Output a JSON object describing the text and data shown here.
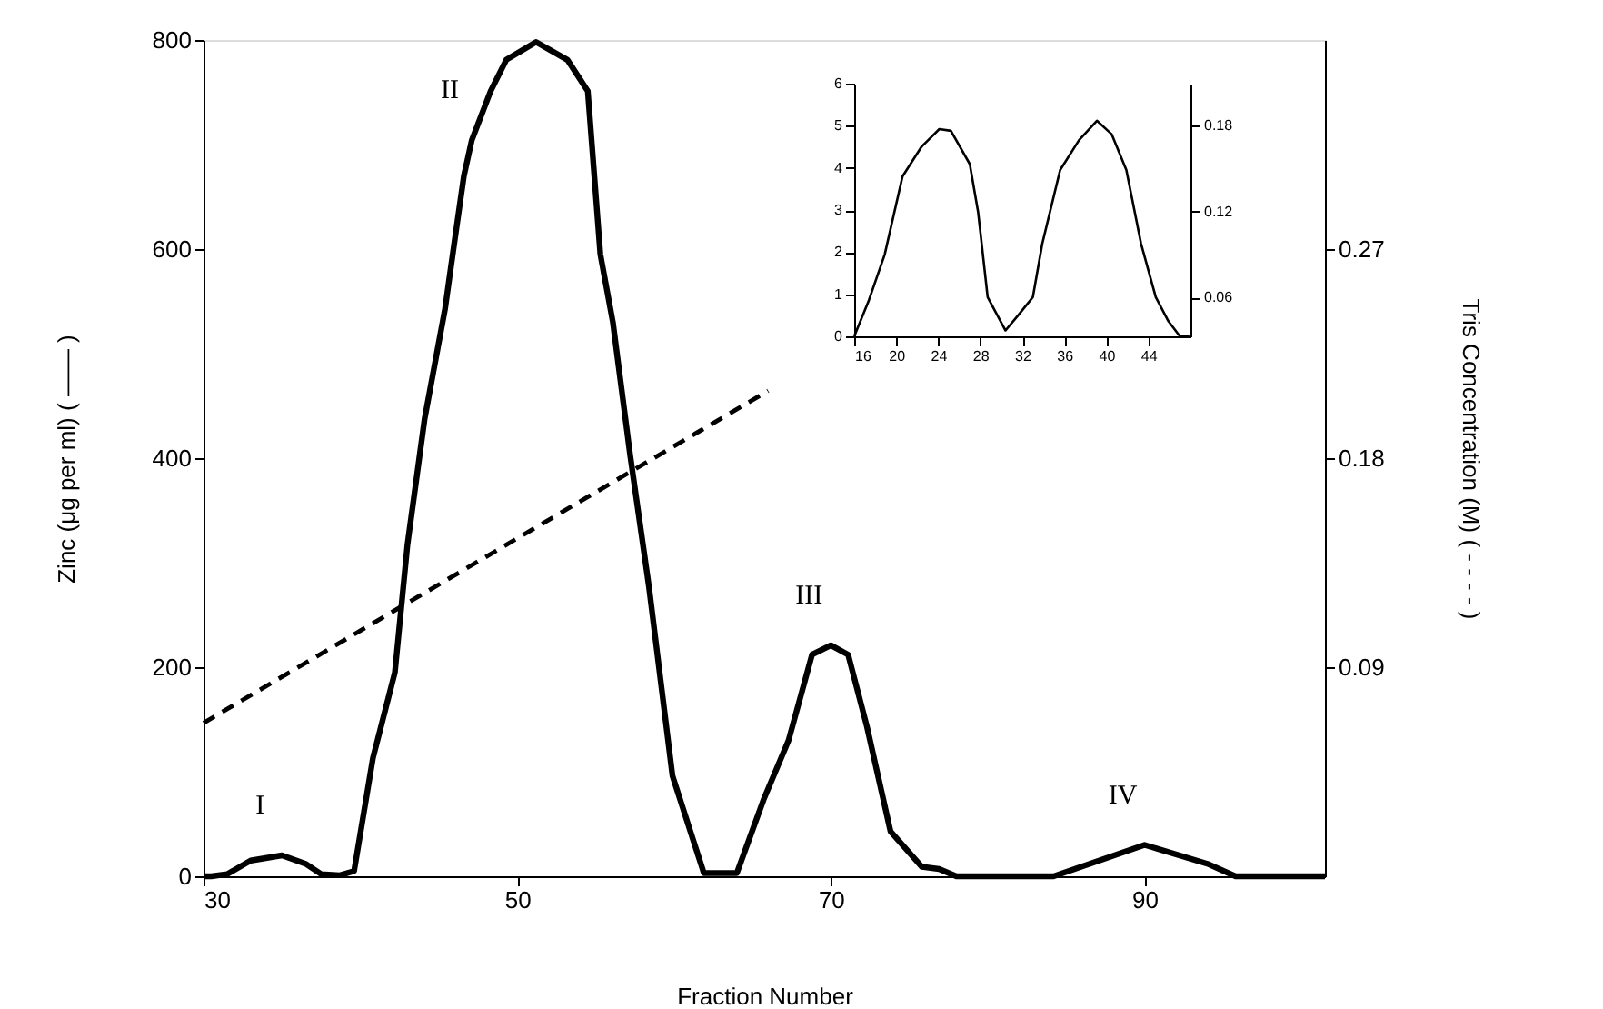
{
  "chart_data": [
    {
      "type": "line",
      "xlabel": "Fraction Number",
      "ylabel": "Zinc (μg per ml)   ( —— )",
      "y2label": "Tris Concentration   (M)   ( - - - - )",
      "xlim": [
        30,
        101.5
      ],
      "xticks": [
        30,
        50,
        70,
        90
      ],
      "ylim": [
        0,
        800
      ],
      "yticks": [
        0,
        200,
        400,
        600,
        800
      ],
      "y2lim": [
        0,
        0.36
      ],
      "y2ticks": [
        0.09,
        0.18,
        0.27
      ],
      "grid": false,
      "series": [
        {
          "color": "#000000",
          "line_style": "solid",
          "x": [
            30,
            30.5,
            31.5,
            33,
            35,
            36.5,
            37.5,
            38.7,
            39.6,
            40.8,
            42.2,
            43,
            44.1,
            45.4,
            46,
            46.6,
            47.1,
            48.3,
            49.3,
            51.2,
            53.2,
            54.5,
            55.3,
            56.1,
            57.2,
            58.4,
            59.9,
            61.9,
            64,
            65.7,
            67.3,
            68.8,
            70,
            71.1,
            72.3,
            73.8,
            75.8,
            76.9,
            78,
            84.2,
            90,
            94,
            95.8,
            101.5
          ],
          "values": [
            0,
            0,
            2,
            15,
            20,
            12,
            2,
            1,
            5,
            113,
            195,
            317,
            438,
            543,
            607,
            670,
            704,
            751,
            781,
            798,
            781,
            751,
            595,
            530,
            403,
            277,
            96,
            3,
            3,
            73,
            130,
            212,
            221,
            212,
            143,
            43,
            9,
            7,
            0,
            0,
            30,
            12,
            0,
            0
          ]
        },
        {
          "color": "#000000",
          "line_style": "dashed",
          "axis": "y2",
          "x": [
            30,
            66
          ],
          "values": [
            0.066,
            0.209
          ]
        }
      ],
      "annotations": [
        {
          "text": "I",
          "x": 35,
          "y": 20
        },
        {
          "text": "II",
          "x": 47.1,
          "y": 704
        },
        {
          "text": "III",
          "x": 70,
          "y": 221
        },
        {
          "text": "IV",
          "x": 90,
          "y": 30
        }
      ]
    },
    {
      "type": "line",
      "xlim": [
        16,
        48
      ],
      "xticks": [
        16,
        20,
        24,
        28,
        32,
        36,
        40,
        44
      ],
      "ylim": [
        0,
        6
      ],
      "yticks": [
        0,
        1,
        2,
        3,
        4,
        5,
        6
      ],
      "y2lim": [
        0.033,
        0.209
      ],
      "y2ticks": [
        0.06,
        0.12,
        0.18
      ],
      "grid": false,
      "series": [
        {
          "color": "#000000",
          "line_style": "solid",
          "x": [
            16,
            17.4,
            18.9,
            20.6,
            22.4,
            24.1,
            25.2,
            27,
            27.8,
            28.7,
            30.4,
            31.6,
            33,
            33.9,
            35.6,
            37.4,
            39.1,
            40.5,
            41.9,
            43.3,
            44.7,
            45.9,
            47,
            47.9
          ],
          "values": [
            0,
            0.86,
            1.94,
            3.8,
            4.5,
            4.92,
            4.88,
            4.09,
            2.94,
            0.93,
            0.14,
            0.5,
            0.93,
            2.2,
            3.95,
            4.66,
            5.12,
            4.8,
            3.95,
            2.2,
            0.93,
            0.36,
            0,
            0
          ]
        }
      ]
    }
  ]
}
